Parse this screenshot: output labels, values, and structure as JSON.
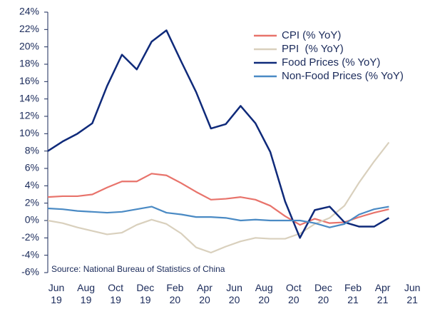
{
  "chart_data": {
    "type": "line",
    "categories": [
      "Jun 19",
      null,
      "Aug 19",
      null,
      "Oct 19",
      null,
      "Dec 19",
      null,
      "Feb 20",
      null,
      "Apr 20",
      null,
      "Jun 20",
      null,
      "Aug 20",
      null,
      "Oct 20",
      null,
      "Dec 20",
      null,
      "Feb 21",
      null,
      "Apr 21",
      null,
      "Jun 21"
    ],
    "series": [
      {
        "name": "CPI (% YoY)",
        "color": "#e8736b",
        "values": [
          2.7,
          2.8,
          2.8,
          3.0,
          3.8,
          4.5,
          4.5,
          5.4,
          5.2,
          4.3,
          3.3,
          2.4,
          2.5,
          2.7,
          2.4,
          1.7,
          0.5,
          -0.5,
          0.2,
          -0.3,
          -0.2,
          0.4,
          0.9,
          1.3,
          null
        ]
      },
      {
        "name": "PPI  (% YoY)",
        "color": "#d9d0bd",
        "values": [
          0.0,
          -0.3,
          -0.8,
          -1.2,
          -1.6,
          -1.4,
          -0.5,
          0.1,
          -0.4,
          -1.5,
          -3.1,
          -3.7,
          -3.0,
          -2.4,
          -2.0,
          -2.1,
          -2.1,
          -1.5,
          -0.4,
          0.3,
          1.7,
          4.4,
          6.8,
          9.0,
          null
        ]
      },
      {
        "name": "Food Prices (% YoY)",
        "color": "#0f2a7a",
        "values": [
          8.0,
          9.1,
          10.0,
          11.2,
          15.5,
          19.1,
          17.4,
          20.6,
          21.9,
          18.3,
          14.8,
          10.6,
          11.1,
          13.2,
          11.2,
          7.9,
          2.2,
          -2.0,
          1.2,
          1.6,
          -0.2,
          -0.7,
          -0.7,
          0.3,
          null
        ]
      },
      {
        "name": "Non-Food Prices (% YoY)",
        "color": "#4a8ac4",
        "values": [
          1.4,
          1.3,
          1.1,
          1.0,
          0.9,
          1.0,
          1.3,
          1.6,
          0.9,
          0.7,
          0.4,
          0.4,
          0.3,
          0.0,
          0.1,
          0.0,
          0.0,
          0.0,
          -0.3,
          -0.8,
          -0.4,
          0.7,
          1.3,
          1.6,
          null
        ]
      }
    ],
    "ylim": [
      -6,
      24
    ],
    "yticks": [
      {
        "value": -6,
        "label": "-6%"
      },
      {
        "value": -4,
        "label": "-4%"
      },
      {
        "value": -2,
        "label": "-2%"
      },
      {
        "value": 0,
        "label": "0%"
      },
      {
        "value": 2,
        "label": "2%"
      },
      {
        "value": 4,
        "label": "4%"
      },
      {
        "value": 6,
        "label": "6%"
      },
      {
        "value": 8,
        "label": "8%"
      },
      {
        "value": 10,
        "label": "10%"
      },
      {
        "value": 12,
        "label": "12%"
      },
      {
        "value": 14,
        "label": "14%"
      },
      {
        "value": 16,
        "label": "16%"
      },
      {
        "value": 18,
        "label": "18%"
      },
      {
        "value": 20,
        "label": "20%"
      },
      {
        "value": 22,
        "label": "22%"
      },
      {
        "value": 24,
        "label": "24%"
      }
    ],
    "annotation": "Source: National Bureau of Statistics of China",
    "legend": "upper right"
  }
}
